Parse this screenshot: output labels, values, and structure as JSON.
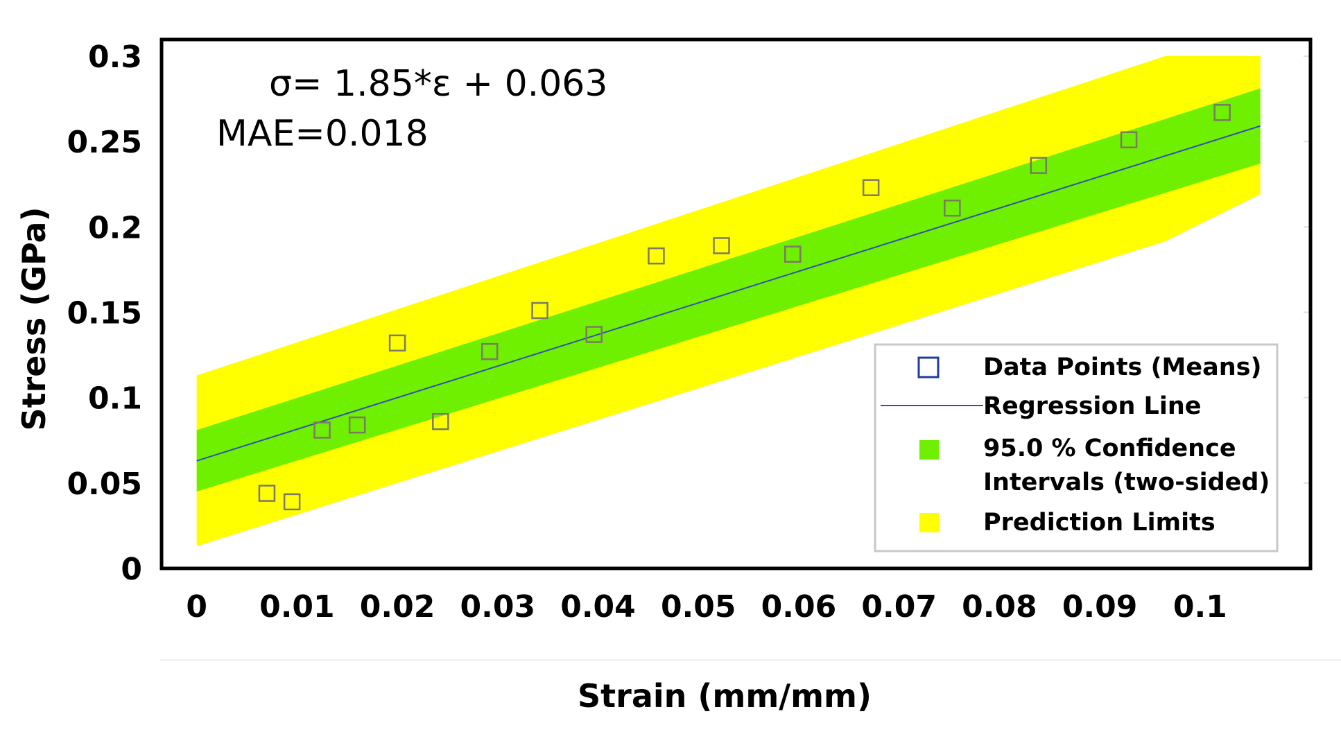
{
  "chart_data": {
    "type": "scatter",
    "xlabel": "Strain (mm/mm)",
    "ylabel": "Stress (GPa)",
    "xlim": [
      -0.0035,
      0.111
    ],
    "ylim": [
      0,
      0.3
    ],
    "xticks": [
      "0",
      "0.01",
      "0.02",
      "0.03",
      "0.04",
      "0.05",
      "0.06",
      "0.07",
      "0.08",
      "0.09",
      "0.1"
    ],
    "yticks": [
      "0",
      "0.05",
      "0.1",
      "0.15",
      "0.2",
      "0.25",
      "0.3"
    ],
    "grid": false,
    "legend_position": "bottom-right",
    "annotations": {
      "equation": "σ= 1.85*ε + 0.063",
      "mae": "MAE=0.018"
    },
    "series": [
      {
        "name": "Data Points (Means)",
        "kind": "scatter",
        "marker": "open-square",
        "color": "#1f3d99",
        "x": [
          0.007,
          0.0095,
          0.0125,
          0.016,
          0.02,
          0.0243,
          0.0292,
          0.0342,
          0.0396,
          0.0458,
          0.0523,
          0.0594,
          0.0672,
          0.0753,
          0.0839,
          0.0929,
          0.1022
        ],
        "y": [
          0.044,
          0.039,
          0.081,
          0.084,
          0.132,
          0.086,
          0.127,
          0.151,
          0.137,
          0.183,
          0.189,
          0.184,
          0.223,
          0.211,
          0.236,
          0.251,
          0.267
        ]
      },
      {
        "name": "Regression Line",
        "kind": "line",
        "color": "#3050b0",
        "x": [
          0,
          0.106
        ],
        "y": [
          0.063,
          0.2591
        ]
      },
      {
        "name": "95.0 % Confidence Intervals (two-sided)",
        "kind": "band",
        "color": "#6ff000",
        "x": [
          0,
          0.106
        ],
        "lower": [
          0.045,
          0.2371
        ],
        "upper": [
          0.081,
          0.2811
        ]
      },
      {
        "name": "Prediction Limits",
        "kind": "band",
        "color": "#ffff00",
        "x": [
          0,
          0.0965,
          0.106
        ],
        "lower": [
          0.013,
          0.1915,
          0.2191
        ],
        "upper": [
          0.113,
          0.3,
          0.3
        ]
      }
    ],
    "legend": [
      {
        "label": "Data Points (Means)",
        "symbol": "square-marker"
      },
      {
        "label": "Regression Line",
        "symbol": "line"
      },
      {
        "label_line1": "95.0 % Confidence",
        "label_line2": "Intervals (two-sided)",
        "symbol": "green-box"
      },
      {
        "label": "Prediction Limits",
        "symbol": "yellow-box"
      }
    ]
  }
}
